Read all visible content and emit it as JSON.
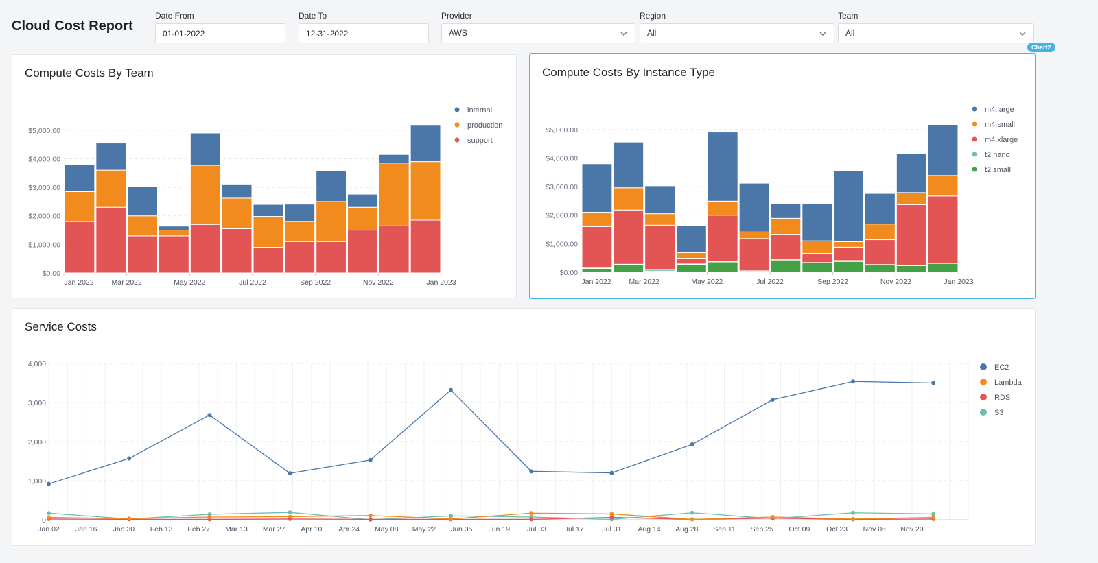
{
  "header": {
    "title": "Cloud Cost Report"
  },
  "filters": {
    "date_from": {
      "label": "Date From",
      "value": "01-01-2022"
    },
    "date_to": {
      "label": "Date To",
      "value": "12-31-2022"
    },
    "provider": {
      "label": "Provider",
      "value": "AWS"
    },
    "region": {
      "label": "Region",
      "value": "All"
    },
    "team": {
      "label": "Team",
      "value": "All"
    }
  },
  "badge": {
    "label": "Chart2"
  },
  "colors": {
    "blue": "#4a76a8",
    "orange": "#f28b1e",
    "red": "#e35555",
    "teal": "#6cbfb0",
    "green": "#45a145",
    "border_selected": "#49b3e6"
  },
  "chart_data": [
    {
      "type": "bar",
      "stacked": true,
      "title": "Compute Costs By Team",
      "categories": [
        "Jan 2022",
        "Feb 2022",
        "Mar 2022",
        "Apr 2022",
        "May 2022",
        "Jun 2022",
        "Jul 2022",
        "Aug 2022",
        "Sep 2022",
        "Oct 2022",
        "Nov 2022",
        "Dec 2022"
      ],
      "x_tick_labels": [
        "Jan 2022",
        "Mar 2022",
        "May 2022",
        "Jul 2022",
        "Sep 2022",
        "Nov 2022",
        "Jan 2023"
      ],
      "y_tick_labels": [
        "$0.00",
        "$1,000.00",
        "$2,000.00",
        "$3,000.00",
        "$4,000.00",
        "$5,000.00"
      ],
      "ylim": [
        0,
        5500
      ],
      "legend_position": "top-right",
      "grid": "horizontal dashed",
      "series": [
        {
          "name": "support",
          "color": "#e35555",
          "values": [
            1800,
            2300,
            1300,
            1300,
            1700,
            1550,
            900,
            1100,
            1100,
            1500,
            1650,
            1850
          ]
        },
        {
          "name": "production",
          "color": "#f28b1e",
          "values": [
            1050,
            1300,
            700,
            200,
            2070,
            1070,
            1080,
            700,
            1400,
            800,
            2200,
            2050
          ]
        },
        {
          "name": "internal",
          "color": "#4a76a8",
          "values": [
            950,
            950,
            1020,
            140,
            1130,
            470,
            420,
            610,
            1070,
            460,
            300,
            1270
          ]
        }
      ],
      "legend_order": [
        "internal",
        "production",
        "support"
      ]
    },
    {
      "type": "bar",
      "stacked": true,
      "title": "Compute Costs By Instance Type",
      "categories": [
        "Jan 2022",
        "Feb 2022",
        "Mar 2022",
        "Apr 2022",
        "May 2022",
        "Jun 2022",
        "Jul 2022",
        "Aug 2022",
        "Sep 2022",
        "Oct 2022",
        "Nov 2022",
        "Dec 2022"
      ],
      "x_tick_labels": [
        "Jan 2022",
        "Mar 2022",
        "May 2022",
        "Jul 2022",
        "Sep 2022",
        "Nov 2022",
        "Jan 2023"
      ],
      "y_tick_labels": [
        "$0.00",
        "$1,000.00",
        "$2,000.00",
        "$3,000.00",
        "$4,000.00",
        "$5,000.00"
      ],
      "ylim": [
        0,
        5500
      ],
      "legend_position": "top-right",
      "grid": "horizontal dashed",
      "series": [
        {
          "name": "t2.small",
          "color": "#45a145",
          "values": [
            130,
            270,
            40,
            280,
            360,
            20,
            430,
            330,
            380,
            260,
            230,
            310
          ]
        },
        {
          "name": "t2.nano",
          "color": "#6cbfb0",
          "values": [
            20,
            10,
            60,
            10,
            10,
            30,
            10,
            10,
            30,
            10,
            20,
            10
          ]
        },
        {
          "name": "m4.xlarge",
          "color": "#e35555",
          "values": [
            1450,
            1900,
            1550,
            200,
            1630,
            1130,
            890,
            320,
            470,
            870,
            2120,
            2350
          ]
        },
        {
          "name": "m4.small",
          "color": "#f28b1e",
          "values": [
            500,
            780,
            400,
            200,
            490,
            230,
            560,
            440,
            190,
            550,
            420,
            720
          ]
        },
        {
          "name": "m4.large",
          "color": "#4a76a8",
          "values": [
            1700,
            1600,
            980,
            950,
            2420,
            1710,
            510,
            1310,
            2490,
            1070,
            1360,
            1770
          ]
        }
      ],
      "legend_order": [
        "m4.large",
        "m4.small",
        "m4.xlarge",
        "t2.nano",
        "t2.small"
      ]
    },
    {
      "type": "line",
      "title": "Service Costs",
      "x_tick_labels": [
        "Jan 02",
        "Jan 16",
        "Jan 30",
        "Feb 13",
        "Feb 27",
        "Mar 13",
        "Mar 27",
        "Apr 10",
        "Apr 24",
        "May 08",
        "May 22",
        "Jun 05",
        "Jun 19",
        "Jul 03",
        "Jul 17",
        "Jul 31",
        "Aug 14",
        "Aug 28",
        "Sep 11",
        "Sep 25",
        "Oct 09",
        "Oct 23",
        "Nov 06",
        "Nov 20"
      ],
      "y_tick_labels": [
        "0",
        "1,000",
        "2,000",
        "3,000",
        "4,000"
      ],
      "x_day_range": [
        0,
        343
      ],
      "ylim": [
        0,
        4000
      ],
      "legend_position": "top-right",
      "grid": "horizontal dashed, vertical light",
      "series": [
        {
          "name": "EC2",
          "color": "#4a76a8",
          "x": [
            0,
            30,
            60,
            90,
            120,
            150,
            180,
            210,
            240,
            270,
            300,
            330,
            358
          ],
          "y": [
            920,
            1570,
            2680,
            1190,
            1530,
            3320,
            1240,
            1200,
            1930,
            3070,
            3540,
            3500,
            null
          ]
        },
        {
          "name": "Lambda",
          "color": "#f28b1e",
          "x": [
            0,
            30,
            60,
            90,
            120,
            150,
            180,
            210,
            240,
            270,
            300,
            330
          ],
          "y": [
            60,
            30,
            70,
            80,
            110,
            20,
            170,
            150,
            10,
            70,
            20,
            60
          ]
        },
        {
          "name": "RDS",
          "color": "#e35555",
          "x": [
            0,
            30,
            60,
            90,
            120,
            150,
            180,
            210,
            240,
            270,
            300,
            330
          ],
          "y": [
            20,
            10,
            10,
            20,
            10,
            10,
            10,
            60,
            10,
            40,
            10,
            20
          ]
        },
        {
          "name": "S3",
          "color": "#6cbfb0",
          "x": [
            0,
            30,
            60,
            90,
            120,
            150,
            180,
            210,
            240,
            270,
            300,
            330
          ],
          "y": [
            170,
            20,
            140,
            190,
            0,
            100,
            70,
            10,
            180,
            30,
            180,
            150
          ]
        }
      ]
    }
  ]
}
